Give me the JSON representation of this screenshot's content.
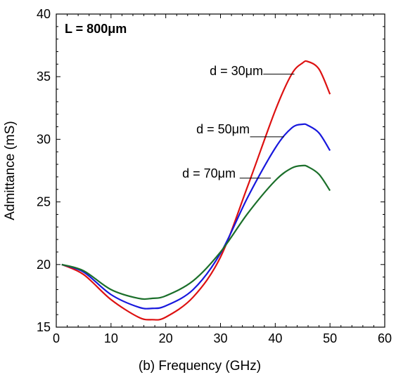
{
  "chart_data": {
    "type": "line",
    "title": "",
    "xlabel": "(b) Frequency (GHz)",
    "ylabel": "Admittance (mS)",
    "xlim": [
      0,
      60
    ],
    "ylim": [
      15,
      40
    ],
    "xticks": [
      "0",
      "10",
      "20",
      "30",
      "40",
      "50",
      "60"
    ],
    "yticks": [
      "15",
      "20",
      "25",
      "30",
      "35",
      "40"
    ],
    "grid": false,
    "legend": "none",
    "annotations": {
      "header": "L = 800μm"
    },
    "series": [
      {
        "name": "d = 30μm",
        "color": "#dd1111",
        "x": [
          1,
          5,
          10,
          15,
          17.5,
          20,
          25,
          30,
          35,
          40,
          43,
          45,
          46,
          48,
          50
        ],
        "y": [
          20.0,
          19.2,
          17.2,
          15.8,
          15.6,
          15.8,
          17.4,
          20.6,
          26.3,
          32.3,
          35.2,
          36.1,
          36.2,
          35.6,
          33.6
        ]
      },
      {
        "name": "d = 50μm",
        "color": "#1818dd",
        "x": [
          1,
          5,
          10,
          15,
          17.5,
          20,
          25,
          30,
          35,
          40,
          43,
          45,
          46,
          48,
          50
        ],
        "y": [
          20.0,
          19.4,
          17.6,
          16.6,
          16.5,
          16.7,
          18.0,
          20.9,
          25.4,
          29.3,
          30.9,
          31.2,
          31.1,
          30.5,
          29.1
        ]
      },
      {
        "name": "d = 70μm",
        "color": "#1b6f2a",
        "x": [
          1,
          5,
          10,
          15,
          17.5,
          20,
          25,
          30,
          35,
          40,
          43,
          45,
          46,
          48,
          50
        ],
        "y": [
          20.0,
          19.5,
          18.0,
          17.3,
          17.3,
          17.5,
          18.7,
          21.0,
          24.1,
          26.7,
          27.7,
          27.9,
          27.8,
          27.2,
          25.9
        ]
      }
    ]
  }
}
